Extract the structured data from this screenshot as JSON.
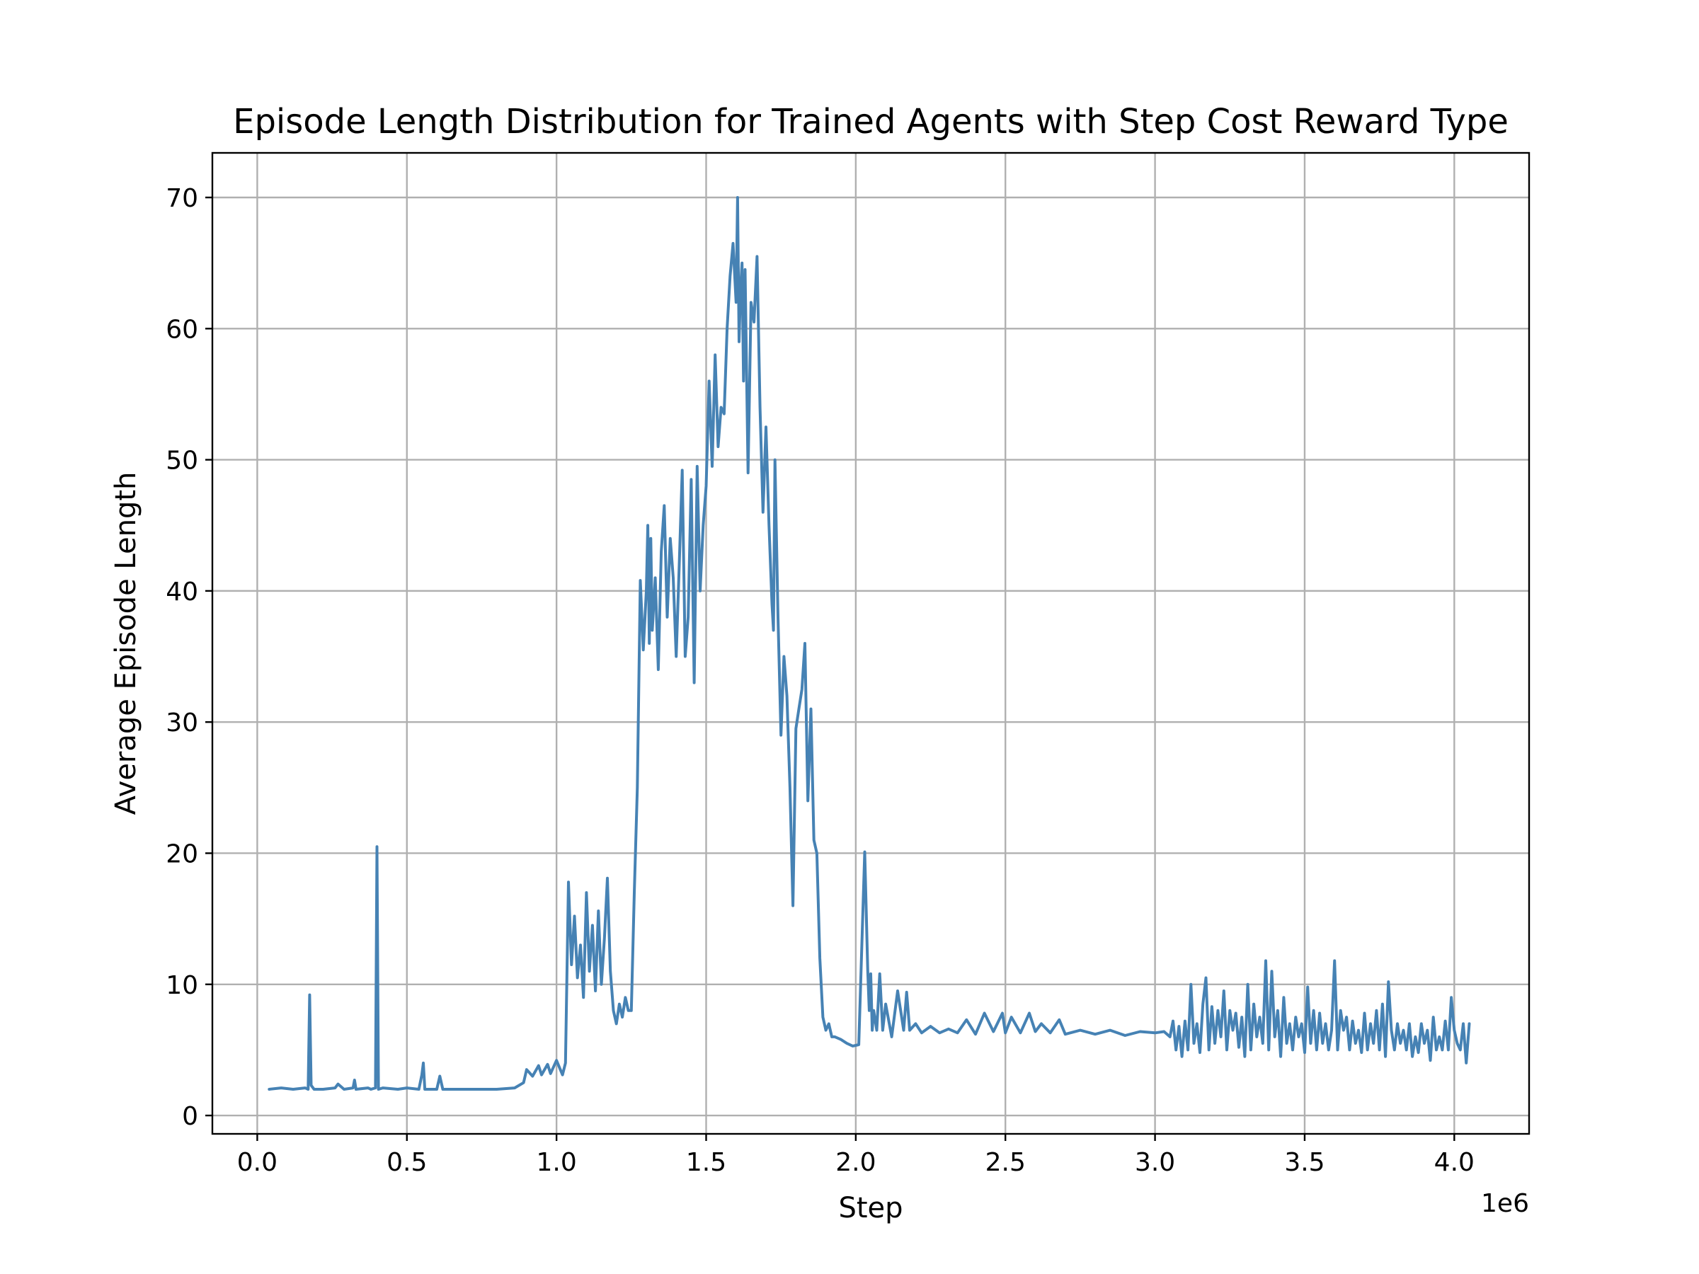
{
  "chart_data": {
    "type": "line",
    "title": "Episode Length Distribution for Trained Agents with Step Cost Reward Type",
    "xlabel": "Step",
    "ylabel": "Average Episode Length",
    "x_offset_text": "1e6",
    "xlim": [
      -0.15,
      4.25
    ],
    "ylim": [
      -1.4,
      73.4
    ],
    "x_ticks": [
      0.0,
      0.5,
      1.0,
      1.5,
      2.0,
      2.5,
      3.0,
      3.5,
      4.0
    ],
    "x_tick_labels": [
      "0.0",
      "0.5",
      "1.0",
      "1.5",
      "2.0",
      "2.5",
      "3.0",
      "3.5",
      "4.0"
    ],
    "y_ticks": [
      0,
      10,
      20,
      30,
      40,
      50,
      60,
      70
    ],
    "y_tick_labels": [
      "0",
      "10",
      "20",
      "30",
      "40",
      "50",
      "60",
      "70"
    ],
    "grid": true,
    "legend": "none",
    "series": [
      {
        "color": "#4682b4",
        "x": [
          0.04,
          0.08,
          0.12,
          0.16,
          0.17,
          0.175,
          0.18,
          0.19,
          0.22,
          0.26,
          0.27,
          0.29,
          0.32,
          0.325,
          0.33,
          0.37,
          0.38,
          0.395,
          0.4,
          0.405,
          0.42,
          0.47,
          0.5,
          0.54,
          0.55,
          0.555,
          0.56,
          0.6,
          0.61,
          0.62,
          0.7,
          0.8,
          0.86,
          0.89,
          0.9,
          0.92,
          0.94,
          0.95,
          0.97,
          0.98,
          1.0,
          1.02,
          1.03,
          1.04,
          1.05,
          1.06,
          1.07,
          1.08,
          1.09,
          1.1,
          1.11,
          1.12,
          1.13,
          1.14,
          1.15,
          1.16,
          1.17,
          1.18,
          1.19,
          1.2,
          1.21,
          1.22,
          1.23,
          1.24,
          1.25,
          1.26,
          1.27,
          1.28,
          1.29,
          1.3,
          1.305,
          1.31,
          1.315,
          1.32,
          1.33,
          1.34,
          1.35,
          1.36,
          1.37,
          1.38,
          1.39,
          1.4,
          1.41,
          1.42,
          1.43,
          1.44,
          1.45,
          1.46,
          1.47,
          1.48,
          1.49,
          1.5,
          1.51,
          1.52,
          1.53,
          1.54,
          1.55,
          1.56,
          1.57,
          1.58,
          1.59,
          1.6,
          1.605,
          1.61,
          1.615,
          1.62,
          1.625,
          1.63,
          1.64,
          1.65,
          1.66,
          1.67,
          1.68,
          1.69,
          1.7,
          1.71,
          1.72,
          1.725,
          1.73,
          1.74,
          1.75,
          1.76,
          1.77,
          1.78,
          1.79,
          1.8,
          1.81,
          1.82,
          1.83,
          1.84,
          1.85,
          1.86,
          1.87,
          1.88,
          1.89,
          1.9,
          1.91,
          1.92,
          1.93,
          1.95,
          1.97,
          1.99,
          2.01,
          2.03,
          2.04,
          2.045,
          2.05,
          2.055,
          2.06,
          2.07,
          2.08,
          2.09,
          2.1,
          2.12,
          2.14,
          2.16,
          2.17,
          2.18,
          2.2,
          2.22,
          2.25,
          2.28,
          2.31,
          2.34,
          2.37,
          2.4,
          2.43,
          2.46,
          2.49,
          2.5,
          2.52,
          2.55,
          2.58,
          2.6,
          2.62,
          2.65,
          2.68,
          2.7,
          2.75,
          2.8,
          2.85,
          2.9,
          2.95,
          3.0,
          3.03,
          3.05,
          3.06,
          3.07,
          3.08,
          3.09,
          3.1,
          3.11,
          3.12,
          3.13,
          3.14,
          3.15,
          3.16,
          3.17,
          3.18,
          3.19,
          3.2,
          3.21,
          3.22,
          3.23,
          3.24,
          3.25,
          3.26,
          3.27,
          3.28,
          3.29,
          3.3,
          3.31,
          3.32,
          3.33,
          3.34,
          3.35,
          3.36,
          3.37,
          3.38,
          3.39,
          3.4,
          3.41,
          3.42,
          3.43,
          3.44,
          3.45,
          3.46,
          3.47,
          3.48,
          3.49,
          3.5,
          3.51,
          3.52,
          3.53,
          3.54,
          3.55,
          3.56,
          3.57,
          3.58,
          3.59,
          3.6,
          3.61,
          3.62,
          3.63,
          3.64,
          3.65,
          3.66,
          3.67,
          3.68,
          3.69,
          3.7,
          3.71,
          3.72,
          3.73,
          3.74,
          3.75,
          3.76,
          3.77,
          3.78,
          3.79,
          3.8,
          3.81,
          3.82,
          3.83,
          3.84,
          3.85,
          3.86,
          3.87,
          3.88,
          3.89,
          3.9,
          3.91,
          3.92,
          3.93,
          3.94,
          3.95,
          3.96,
          3.97,
          3.98,
          3.99,
          4.0,
          4.01,
          4.02,
          4.03,
          4.04,
          4.05
        ],
        "y": [
          2.0,
          2.1,
          2.0,
          2.1,
          2.0,
          9.2,
          2.3,
          2.0,
          2.0,
          2.1,
          2.4,
          2.0,
          2.1,
          2.7,
          2.0,
          2.1,
          2.0,
          2.1,
          20.5,
          2.0,
          2.1,
          2.0,
          2.1,
          2.0,
          3.1,
          4.0,
          2.0,
          2.0,
          3.0,
          2.0,
          2.0,
          2.0,
          2.1,
          2.5,
          3.5,
          3.0,
          3.8,
          3.1,
          3.9,
          3.2,
          4.2,
          3.1,
          4.0,
          17.8,
          11.5,
          15.2,
          10.5,
          13.0,
          9.0,
          17.0,
          11.0,
          14.5,
          9.5,
          15.6,
          10.0,
          13.5,
          18.1,
          11.0,
          8.0,
          7.0,
          8.5,
          7.5,
          9.0,
          8.0,
          8.0,
          17.0,
          25.0,
          40.8,
          35.5,
          40.0,
          45.0,
          36.0,
          44.0,
          37.0,
          41.0,
          34.0,
          43.0,
          46.5,
          38.0,
          44.0,
          41.0,
          35.0,
          42.0,
          49.2,
          35.0,
          38.0,
          48.5,
          33.0,
          49.5,
          40.0,
          45.0,
          48.0,
          56.0,
          49.5,
          58.0,
          51.0,
          54.0,
          53.5,
          60.0,
          64.0,
          66.5,
          62.0,
          70.0,
          59.0,
          63.0,
          65.0,
          56.0,
          64.5,
          49.0,
          62.0,
          60.5,
          65.5,
          54.0,
          46.0,
          52.5,
          45.0,
          39.0,
          37.0,
          50.0,
          38.0,
          29.0,
          35.0,
          32.0,
          25.0,
          16.0,
          29.5,
          31.0,
          32.5,
          36.0,
          24.0,
          31.0,
          21.0,
          20.0,
          12.0,
          7.5,
          6.5,
          7.0,
          6.0,
          6.0,
          5.8,
          5.5,
          5.3,
          5.4,
          20.1,
          11.0,
          8.0,
          10.8,
          6.5,
          8.0,
          6.5,
          10.8,
          6.5,
          8.5,
          6.0,
          9.5,
          6.5,
          9.4,
          6.5,
          7.0,
          6.3,
          6.8,
          6.3,
          6.6,
          6.3,
          7.3,
          6.2,
          7.8,
          6.4,
          7.8,
          6.3,
          7.5,
          6.3,
          7.8,
          6.4,
          7.0,
          6.3,
          7.3,
          6.2,
          6.5,
          6.2,
          6.5,
          6.1,
          6.4,
          6.3,
          6.4,
          6.0,
          7.2,
          5.0,
          6.8,
          4.5,
          7.2,
          5.0,
          10.0,
          5.5,
          7.0,
          4.8,
          8.5,
          10.5,
          5.0,
          8.3,
          5.5,
          8.0,
          6.0,
          9.5,
          5.0,
          8.0,
          6.5,
          7.8,
          5.2,
          7.5,
          4.5,
          10.0,
          5.0,
          8.5,
          6.0,
          7.5,
          5.5,
          11.8,
          5.0,
          11.0,
          6.0,
          8.0,
          4.5,
          9.0,
          5.5,
          7.0,
          5.0,
          7.5,
          6.0,
          7.0,
          4.8,
          9.8,
          5.5,
          8.0,
          5.0,
          7.8,
          5.5,
          7.0,
          5.0,
          6.5,
          11.8,
          5.0,
          8.0,
          6.5,
          7.5,
          5.0,
          7.2,
          5.5,
          6.5,
          4.8,
          7.8,
          5.0,
          7.0,
          5.5,
          8.0,
          5.0,
          8.5,
          4.5,
          10.2,
          6.5,
          5.0,
          7.0,
          5.5,
          6.5,
          5.0,
          7.0,
          4.5,
          6.0,
          4.8,
          7.0,
          5.5,
          6.5,
          4.2,
          7.5,
          5.0,
          6.0,
          5.0,
          7.2,
          5.0,
          9.0,
          6.5,
          5.5,
          5.0,
          7.0,
          4.0,
          7.0
        ]
      }
    ]
  }
}
